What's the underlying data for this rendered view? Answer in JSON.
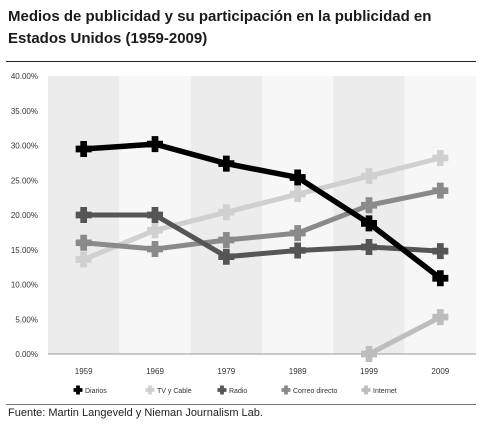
{
  "title": "Medios de publicidad y su participación en la publicidad en Estados Unidos (1959-2009)",
  "source": "Fuente: Martin Langeveld y Nieman Journalism Lab.",
  "chart_data": {
    "type": "line",
    "categories": [
      "1959",
      "1969",
      "1979",
      "1989",
      "1999",
      "2009"
    ],
    "y_ticks": [
      "0.00%",
      "5.00%",
      "10.00%",
      "15.00%",
      "20.00%",
      "25.00%",
      "30.00%",
      "35.00%",
      "40.00%"
    ],
    "ylim": [
      0,
      40
    ],
    "grid": false,
    "legend_position": "bottom",
    "series": [
      {
        "name": "Diarios",
        "values": [
          29.5,
          30.2,
          27.4,
          25.4,
          18.8,
          10.9
        ],
        "color": "#000000"
      },
      {
        "name": "TV y Cable",
        "values": [
          13.6,
          17.8,
          20.4,
          23.0,
          25.6,
          28.2
        ],
        "color": "#d0d0d0"
      },
      {
        "name": "Radio",
        "values": [
          20.0,
          20.0,
          14.0,
          14.9,
          15.4,
          14.8
        ],
        "color": "#555555"
      },
      {
        "name": "Correo directo",
        "values": [
          16.0,
          15.1,
          16.4,
          17.4,
          21.4,
          23.5
        ],
        "color": "#8a8a8a"
      },
      {
        "name": "Internet",
        "values": [
          null,
          null,
          null,
          null,
          0.0,
          5.3
        ],
        "color": "#bdbdbd"
      }
    ]
  }
}
